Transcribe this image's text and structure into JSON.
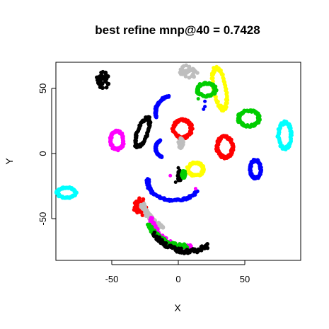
{
  "chart_data": {
    "type": "scatter",
    "title": "best refine mnp@40 = 0.7428",
    "xlabel": "X",
    "ylabel": "Y",
    "xlim": [
      -92,
      92
    ],
    "ylim": [
      -82,
      70
    ],
    "x_ticks": [
      -50,
      0,
      50
    ],
    "y_ticks": [
      -50,
      0,
      50
    ],
    "grid": false,
    "legend": "none",
    "clusters": [
      {
        "color": "#000000",
        "shape": "blob",
        "cx": -57,
        "cy": 56,
        "rx": 5,
        "ry": 7,
        "angle": 0
      },
      {
        "color": "#000000",
        "shape": "ring",
        "cx": -27,
        "cy": 16,
        "rx": 4,
        "ry": 12,
        "angle": -20
      },
      {
        "color": "#ff00ff",
        "shape": "ring",
        "cx": -46,
        "cy": 10,
        "rx": 5,
        "ry": 7,
        "angle": 0
      },
      {
        "color": "#00ffff",
        "shape": "ring",
        "cx": -84,
        "cy": -30,
        "rx": 7,
        "ry": 4,
        "angle": 0
      },
      {
        "color": "#bebebe",
        "shape": "blob",
        "cx": 8,
        "cy": 63,
        "rx": 7,
        "ry": 5,
        "angle": 0
      },
      {
        "color": "#ffff00",
        "shape": "ring",
        "cx": 31,
        "cy": 50,
        "rx": 5,
        "ry": 16,
        "angle": 10
      },
      {
        "color": "#00cd00",
        "shape": "ring",
        "cx": 21,
        "cy": 49,
        "rx": 7,
        "ry": 5,
        "angle": 0
      },
      {
        "color": "#0000ff",
        "shape": "arc",
        "cx": -5,
        "cy": 32,
        "rx": 12,
        "ry": 12,
        "a0": 100,
        "a1": 200
      },
      {
        "color": "#ff0000",
        "shape": "ring",
        "cx": 3,
        "cy": 19,
        "rx": 7,
        "ry": 7,
        "angle": 0
      },
      {
        "color": "#bebebe",
        "shape": "blob",
        "cx": 2,
        "cy": 8,
        "rx": 2,
        "ry": 4,
        "angle": 0
      },
      {
        "color": "#0000ff",
        "shape": "arc",
        "cx": -10,
        "cy": 4,
        "rx": 7,
        "ry": 7,
        "a0": 120,
        "a1": 250
      },
      {
        "color": "#ff0000",
        "shape": "ring",
        "cx": 35,
        "cy": 5,
        "rx": 6,
        "ry": 8,
        "angle": 0
      },
      {
        "color": "#00cd00",
        "shape": "ring",
        "cx": 53,
        "cy": 27,
        "rx": 8,
        "ry": 6,
        "angle": 0
      },
      {
        "color": "#00ffff",
        "shape": "ring",
        "cx": 80,
        "cy": 14,
        "rx": 5,
        "ry": 10,
        "angle": 0
      },
      {
        "color": "#0000ff",
        "shape": "ring",
        "cx": 58,
        "cy": -12,
        "rx": 4,
        "ry": 7,
        "angle": 0
      },
      {
        "color": "#ffff00",
        "shape": "ring",
        "cx": 13,
        "cy": -12,
        "rx": 6,
        "ry": 5,
        "angle": 0
      },
      {
        "color": "#0000ff",
        "shape": "arc",
        "cx": -3,
        "cy": -22,
        "rx": 20,
        "ry": 14,
        "a0": 170,
        "a1": 330
      },
      {
        "color": "#ff0000",
        "shape": "blob",
        "cx": -29,
        "cy": -41,
        "rx": 5,
        "ry": 7,
        "angle": 0
      },
      {
        "color": "#bebebe",
        "shape": "arc",
        "cx": 5,
        "cy": -31,
        "rx": 33,
        "ry": 30,
        "a0": 195,
        "a1": 240
      },
      {
        "color": "#ff00ff",
        "shape": "arc",
        "cx": 7,
        "cy": -38,
        "rx": 30,
        "ry": 34,
        "a0": 200,
        "a1": 275
      },
      {
        "color": "#00cd00",
        "shape": "arc",
        "cx": 4,
        "cy": -42,
        "rx": 29,
        "ry": 29,
        "a0": 205,
        "a1": 275
      },
      {
        "color": "#000000",
        "shape": "arc",
        "cx": 7,
        "cy": -42,
        "rx": 31,
        "ry": 33,
        "a0": 215,
        "a1": 300
      },
      {
        "color": "#000000",
        "shape": "blob",
        "cx": 1,
        "cy": -17,
        "rx": 1.5,
        "ry": 4,
        "angle": 0
      },
      {
        "color": "#00cd00",
        "shape": "blob",
        "cx": 4,
        "cy": -16,
        "rx": 1.5,
        "ry": 3,
        "angle": 0
      }
    ],
    "scattered_points": [
      {
        "color": "#0000ff",
        "x": [
          20,
          20,
          19
        ],
        "y": [
          40,
          36,
          34
        ]
      },
      {
        "color": "#00cd00",
        "x": [
          15,
          14
        ],
        "y": [
          42,
          47
        ]
      },
      {
        "color": "#ff00ff",
        "x": [
          -6,
          13
        ],
        "y": [
          -17,
          -27
        ]
      },
      {
        "color": "#000000",
        "x": [
          0,
          0,
          -2
        ],
        "y": [
          -11,
          -14,
          -22
        ]
      }
    ]
  }
}
